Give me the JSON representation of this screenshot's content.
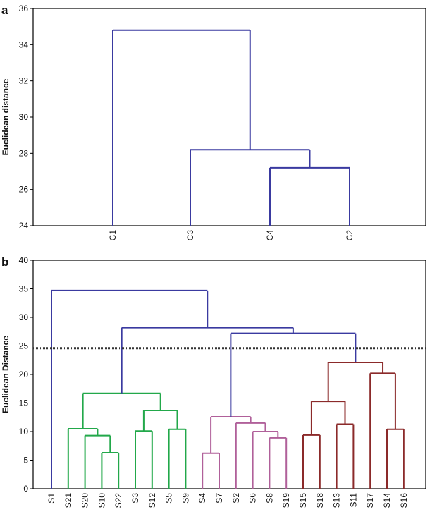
{
  "chart_data": [
    {
      "type": "dendrogram",
      "panel_label": "a",
      "title": "",
      "xlabel": "",
      "ylabel": "Euclidean distance",
      "ylim": [
        24,
        36
      ],
      "yticks": [
        24,
        26,
        28,
        30,
        32,
        34,
        36
      ],
      "leaves": [
        "C1",
        "C3",
        "C4",
        "C2"
      ],
      "merges": [
        {
          "left": "C4",
          "right": "C2",
          "height": 27.2,
          "color": "#3a3aa0"
        },
        {
          "left": "C3",
          "right": "C4+C2",
          "height": 28.2,
          "color": "#3a3aa0"
        },
        {
          "left": "C1",
          "right": "C3+C4+C2",
          "height": 34.8,
          "color": "#3a3aa0"
        }
      ]
    },
    {
      "type": "dendrogram",
      "panel_label": "b",
      "title": "",
      "xlabel": "",
      "ylabel": "Euclidean Distance",
      "ylim": [
        0,
        40
      ],
      "yticks": [
        0,
        5,
        10,
        15,
        20,
        25,
        30,
        35,
        40
      ],
      "cutoff_line": 24.6,
      "leaves": [
        "S1",
        "S21",
        "S20",
        "S10",
        "S22",
        "S3",
        "S12",
        "S5",
        "S9",
        "S4",
        "S7",
        "S2",
        "S6",
        "S8",
        "S19",
        "S15",
        "S18",
        "S13",
        "S11",
        "S17",
        "S14",
        "S16"
      ],
      "clusters": [
        {
          "name": "green",
          "color": "#22a84a",
          "leaves": [
            "S21",
            "S20",
            "S10",
            "S22",
            "S3",
            "S12",
            "S5",
            "S9"
          ]
        },
        {
          "name": "pink",
          "color": "#b0609a",
          "leaves": [
            "S4",
            "S7",
            "S2",
            "S6",
            "S8",
            "S19"
          ]
        },
        {
          "name": "red",
          "color": "#8b2a2a",
          "leaves": [
            "S15",
            "S18",
            "S13",
            "S11",
            "S17",
            "S14",
            "S16"
          ]
        },
        {
          "name": "root",
          "color": "#3a3aa0",
          "leaves": [
            "S1"
          ]
        }
      ],
      "merges": [
        {
          "id": "g1",
          "left": "S10",
          "right": "S22",
          "height": 6.3,
          "color": "#22a84a"
        },
        {
          "id": "g2",
          "left": "S20",
          "right": "g1",
          "height": 9.3,
          "color": "#22a84a"
        },
        {
          "id": "g3",
          "left": "S21",
          "right": "g2",
          "height": 10.5,
          "color": "#22a84a"
        },
        {
          "id": "g4",
          "left": "S5",
          "right": "S9",
          "height": 10.4,
          "color": "#22a84a"
        },
        {
          "id": "g5",
          "left": "S3",
          "right": "S12",
          "height": 10.1,
          "color": "#22a84a"
        },
        {
          "id": "g6",
          "left": "g5",
          "right": "g4",
          "height": 13.7,
          "color": "#22a84a"
        },
        {
          "id": "g7",
          "left": "g3",
          "right": "g6",
          "height": 16.7,
          "color": "#22a84a"
        },
        {
          "id": "p1",
          "left": "S4",
          "right": "S7",
          "height": 6.2,
          "color": "#b0609a"
        },
        {
          "id": "p2",
          "left": "S8",
          "right": "S19",
          "height": 8.9,
          "color": "#b0609a"
        },
        {
          "id": "p3",
          "left": "S6",
          "right": "p2",
          "height": 10.0,
          "color": "#b0609a"
        },
        {
          "id": "p4",
          "left": "S2",
          "right": "p3",
          "height": 11.5,
          "color": "#b0609a"
        },
        {
          "id": "p5",
          "left": "p1",
          "right": "p4",
          "height": 12.6,
          "color": "#b0609a"
        },
        {
          "id": "r1",
          "left": "S15",
          "right": "S18",
          "height": 9.4,
          "color": "#8b2a2a"
        },
        {
          "id": "r2",
          "left": "S13",
          "right": "S11",
          "height": 11.3,
          "color": "#8b2a2a"
        },
        {
          "id": "r3",
          "left": "r1",
          "right": "r2",
          "height": 15.3,
          "color": "#8b2a2a"
        },
        {
          "id": "r4",
          "left": "S14",
          "right": "S16",
          "height": 10.4,
          "color": "#8b2a2a"
        },
        {
          "id": "r5",
          "left": "S17",
          "right": "r4",
          "height": 20.2,
          "color": "#8b2a2a"
        },
        {
          "id": "r6",
          "left": "r3",
          "right": "r5",
          "height": 22.1,
          "color": "#8b2a2a"
        },
        {
          "id": "b1",
          "left": "p5",
          "right": "r6",
          "height": 27.2,
          "color": "#3a3aa0"
        },
        {
          "id": "b2",
          "left": "g7",
          "right": "b1",
          "height": 28.2,
          "color": "#3a3aa0"
        },
        {
          "id": "b3",
          "left": "S1",
          "right": "b2",
          "height": 34.7,
          "color": "#3a3aa0"
        }
      ]
    }
  ]
}
